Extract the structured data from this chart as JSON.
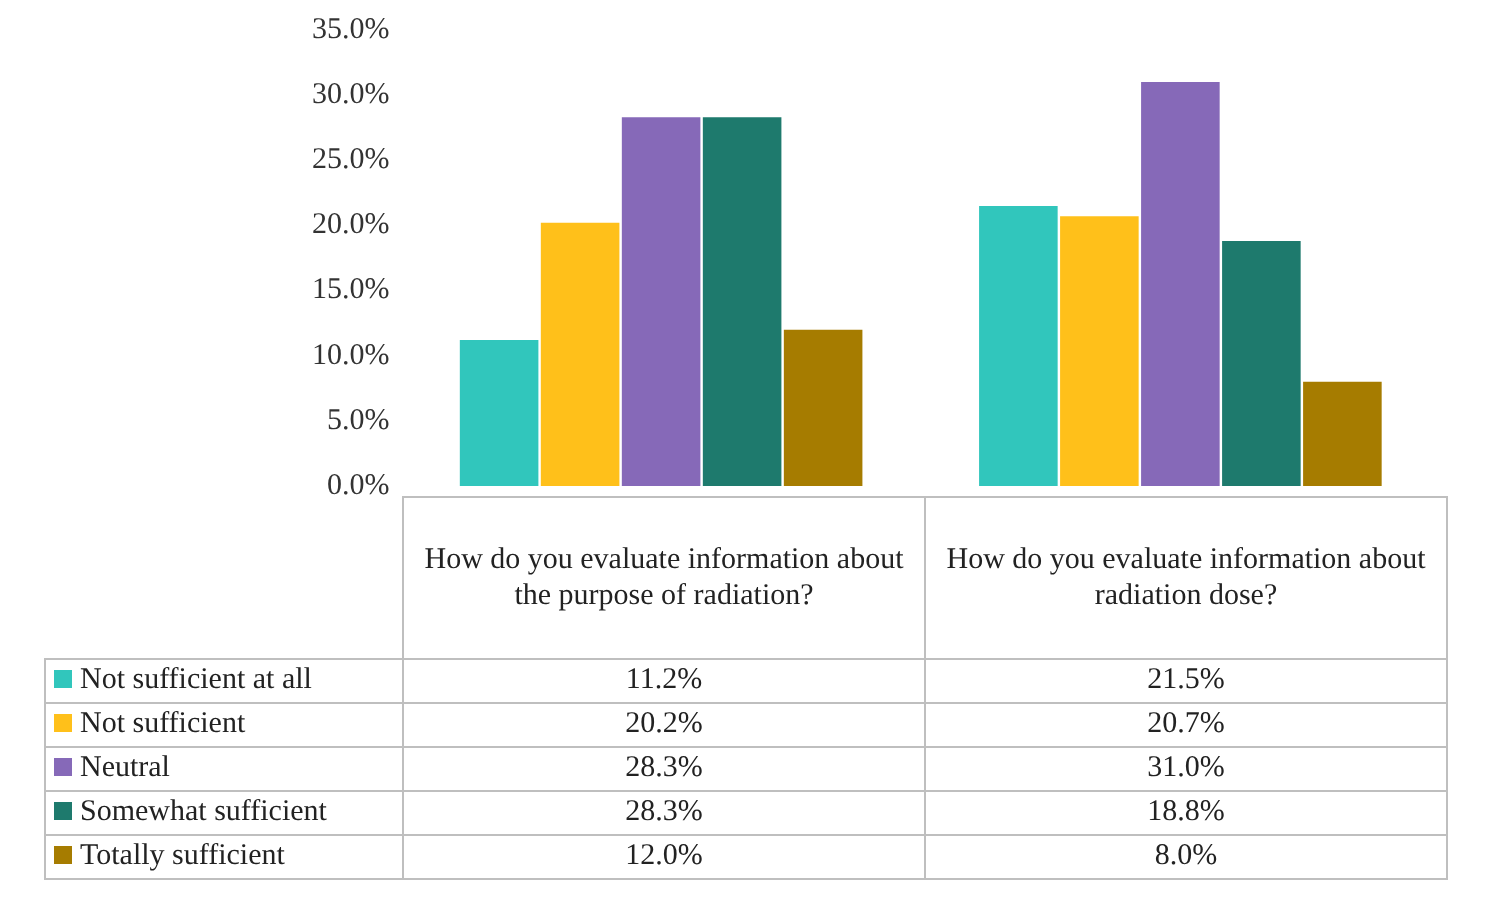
{
  "chart_data": {
    "type": "bar",
    "categories": [
      "How do you evaluate information about the purpose of radiation?",
      "How do you evaluate information about radiation dose?"
    ],
    "series": [
      {
        "name": "Not sufficient at all",
        "color": "#31c6bc",
        "values": [
          11.2,
          21.5
        ],
        "value_labels": [
          "11.2%",
          "21.5%"
        ]
      },
      {
        "name": "Not sufficient",
        "color": "#ffc01a",
        "values": [
          20.2,
          20.7
        ],
        "value_labels": [
          "20.2%",
          "20.7%"
        ]
      },
      {
        "name": "Neutral",
        "color": "#8669b8",
        "values": [
          28.3,
          31.0
        ],
        "value_labels": [
          "28.3%",
          "31.0%"
        ]
      },
      {
        "name": "Somewhat sufficient",
        "color": "#1e7a6d",
        "values": [
          28.3,
          18.8
        ],
        "value_labels": [
          "28.3%",
          "18.8%"
        ]
      },
      {
        "name": "Totally sufficient",
        "color": "#a67c00",
        "values": [
          12.0,
          8.0
        ],
        "value_labels": [
          "12.0%",
          "8.0%"
        ]
      }
    ],
    "ylim": [
      0,
      35
    ],
    "yticks": [
      {
        "value": 0,
        "label": "0.0%"
      },
      {
        "value": 5,
        "label": "5.0%"
      },
      {
        "value": 10,
        "label": "10.0%"
      },
      {
        "value": 15,
        "label": "15.0%"
      },
      {
        "value": 20,
        "label": "20.0%"
      },
      {
        "value": 25,
        "label": "25.0%"
      },
      {
        "value": 30,
        "label": "30.0%"
      },
      {
        "value": 35,
        "label": "35.0%"
      }
    ],
    "grid": false,
    "legend": "bottom"
  }
}
